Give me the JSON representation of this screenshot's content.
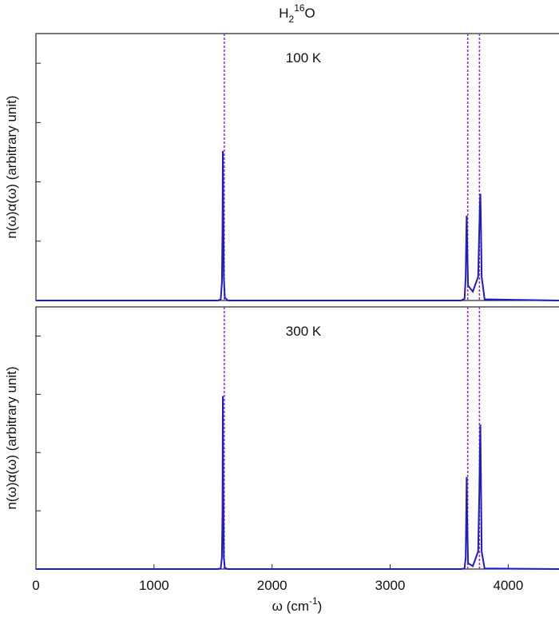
{
  "chart_data": [
    {
      "type": "line",
      "title": {
        "base": "H",
        "sub": "2",
        "sup": "16",
        "end": "O"
      },
      "annotation": "100 K",
      "ylabel": "n(ω)α(ω)  (arbitrary unit)",
      "xlim": [
        0,
        4430
      ],
      "ylim": [
        0,
        4.5
      ],
      "yticks": [
        0,
        1,
        2,
        3,
        4
      ],
      "reference_lines": {
        "x": [
          1595,
          3657,
          3756
        ],
        "color": "#a020f0"
      },
      "x": [
        0,
        1540,
        1565,
        1575,
        1580,
        1583,
        1586,
        1591,
        1600,
        1625,
        3600,
        3630,
        3640,
        3645,
        3648,
        3652,
        3660,
        3700,
        3745,
        3755,
        3760,
        3764,
        3768,
        3775,
        3800,
        4430
      ],
      "series": [
        {
          "color": "#1c1cc8",
          "values": [
            0,
            0,
            0.02,
            0.3,
            1.2,
            2.52,
            1.8,
            0.4,
            0.05,
            0,
            0,
            0.03,
            0.4,
            1.1,
            1.43,
            1.0,
            0.25,
            0.15,
            0.4,
            1.2,
            1.6,
            1.8,
            1.4,
            0.4,
            0.02,
            0
          ]
        }
      ]
    },
    {
      "type": "line",
      "annotation": "300 K",
      "ylabel": "n(ω)α(ω)  (arbitrary unit)",
      "xlabel": {
        "text": "ω (cm",
        "sup": "-1",
        "end": ")"
      },
      "xlim": [
        0,
        4430
      ],
      "ylim": [
        0,
        4.5
      ],
      "yticks": [
        0,
        1,
        2,
        3,
        4
      ],
      "xticks": [
        0,
        1000,
        2000,
        3000,
        4000
      ],
      "reference_lines": {
        "x": [
          1595,
          3657,
          3756
        ],
        "color": "#a020f0"
      },
      "x": [
        0,
        1540,
        1565,
        1575,
        1580,
        1583,
        1586,
        1591,
        1600,
        1625,
        3600,
        3630,
        3640,
        3645,
        3648,
        3652,
        3660,
        3700,
        3745,
        3755,
        3760,
        3764,
        3768,
        3775,
        3800,
        4430
      ],
      "series": [
        {
          "color": "#1c1cc8",
          "values": [
            0,
            0,
            0.01,
            0.2,
            1.0,
            2.97,
            1.6,
            0.2,
            0.02,
            0,
            0,
            0.01,
            0.2,
            1.0,
            1.58,
            0.9,
            0.1,
            0.05,
            0.3,
            1.3,
            2.0,
            2.48,
            1.7,
            0.3,
            0.01,
            0
          ]
        }
      ]
    }
  ]
}
